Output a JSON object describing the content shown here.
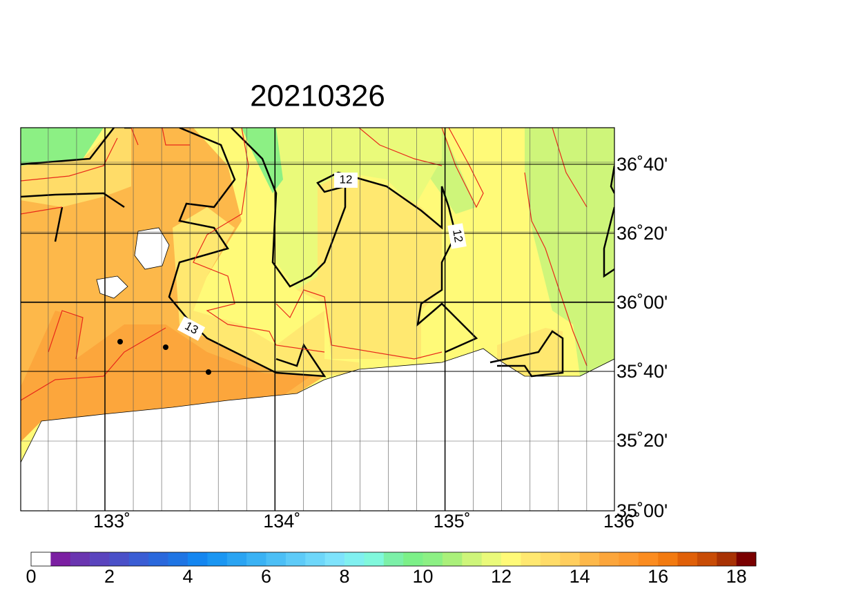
{
  "title": "20210326",
  "map": {
    "lon_labels": [
      "133˚",
      "134˚",
      "135˚",
      "136˚"
    ],
    "lat_labels": [
      "36˚40'",
      "36˚20'",
      "36˚00'",
      "35˚40'",
      "35˚20'",
      "35˚00'"
    ],
    "contour_labels": [
      "12",
      "12",
      "13"
    ]
  },
  "colorbar": {
    "labels": [
      "0",
      "2",
      "4",
      "6",
      "8",
      "10",
      "12",
      "14",
      "16",
      "18"
    ],
    "colors": [
      "#ffffff",
      "#7b1fa2",
      "#6a35b0",
      "#5a44be",
      "#4a50c8",
      "#3a5dd4",
      "#2a68dc",
      "#1f75e4",
      "#1486f0",
      "#1a96f2",
      "#2aa4f2",
      "#3ab2f4",
      "#4cbff6",
      "#5ecbf8",
      "#6ed7fa",
      "#7ee3fc",
      "#80f0f0",
      "#80f8dc",
      "#7cf0a8",
      "#7cf088",
      "#8cf084",
      "#aaf07a",
      "#cef57a",
      "#eafa7a",
      "#fffa78",
      "#ffe870",
      "#ffdc68",
      "#ffce5e",
      "#fdb84a",
      "#fca63c",
      "#fc9a30",
      "#fb8c20",
      "#f27a10",
      "#e06008",
      "#c84c06",
      "#a83204",
      "#7a0000"
    ]
  }
}
